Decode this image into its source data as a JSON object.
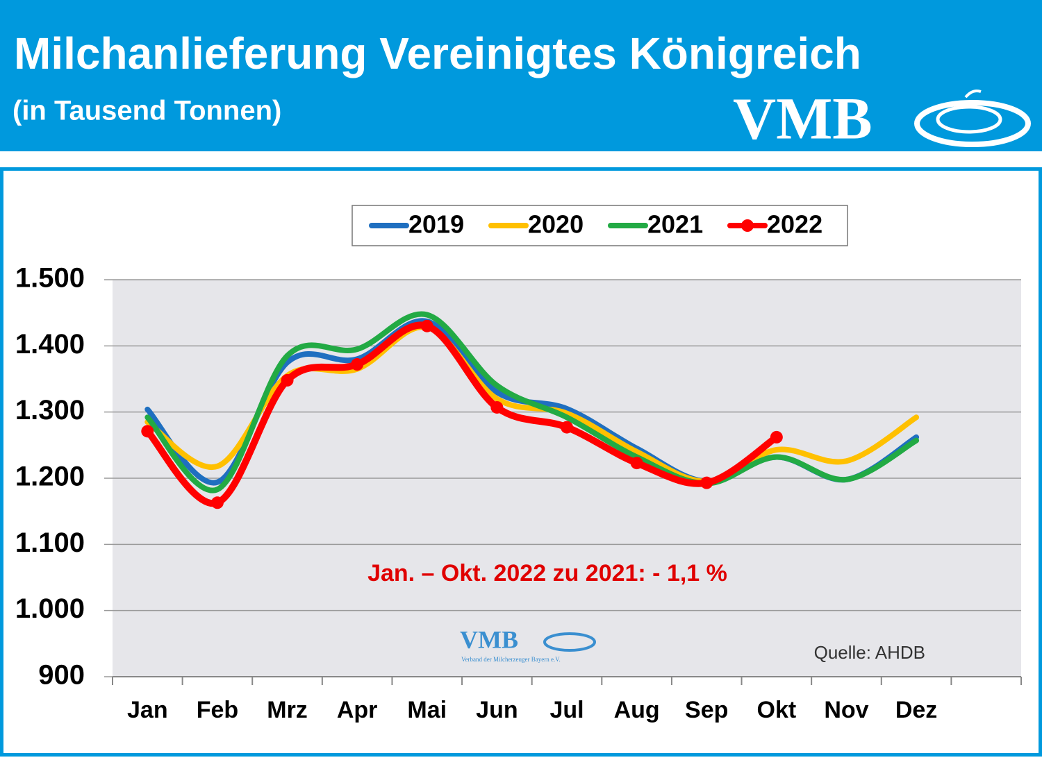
{
  "header": {
    "title": "Milchanlieferung Vereinigtes Königreich",
    "subtitle": "(in Tausend Tonnen)",
    "logo": "VMB"
  },
  "chart_data": {
    "type": "line",
    "categories": [
      "Jan",
      "Feb",
      "Mrz",
      "Apr",
      "Mai",
      "Jun",
      "Jul",
      "Aug",
      "Sep",
      "Okt",
      "Nov",
      "Dez"
    ],
    "series": [
      {
        "name": "2019",
        "color": "#1f6fc0",
        "values": [
          1304,
          1194,
          1375,
          1380,
          1437,
          1330,
          1305,
          1245,
          1195,
          1232,
          1198,
          1262
        ]
      },
      {
        "name": "2020",
        "color": "#ffc000",
        "values": [
          1285,
          1218,
          1355,
          1365,
          1428,
          1320,
          1298,
          1240,
          1195,
          1243,
          1226,
          1292
        ]
      },
      {
        "name": "2021",
        "color": "#22aa44",
        "values": [
          1292,
          1183,
          1385,
          1395,
          1447,
          1340,
          1292,
          1232,
          1192,
          1232,
          1198,
          1257
        ]
      },
      {
        "name": "2022",
        "color": "#ff0000",
        "values": [
          1271,
          1163,
          1348,
          1372,
          1430,
          1307,
          1277,
          1223,
          1193,
          1262,
          null,
          null
        ]
      }
    ],
    "ylim": [
      900,
      1500
    ],
    "yticks": [
      900,
      {
        "value": 1000,
        "label": "1.000"
      },
      {
        "value": 1100,
        "label": "1.100"
      },
      {
        "value": 1200,
        "label": "1.200"
      },
      {
        "value": 1300,
        "label": "1.300"
      },
      {
        "value": 1400,
        "label": "1.400"
      },
      {
        "value": 1500,
        "label": "1.500"
      }
    ],
    "grid": true,
    "legend": "top",
    "annotation": "Jan. – Okt. 2022 zu 2021: - 1,1 %",
    "source": "Quelle: AHDB",
    "watermark": {
      "logo": "VMB",
      "text": "Verband der Milcherzeuger Bayern e.V."
    }
  }
}
